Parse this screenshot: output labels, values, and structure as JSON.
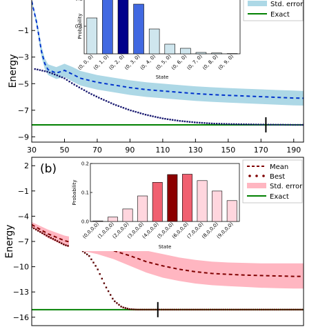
{
  "chart_data": [
    {
      "type": "line",
      "panel_label": "",
      "xlabel": "",
      "ylabel": "Energy",
      "xlim": [
        30,
        196
      ],
      "ylim": [
        -9.4,
        1.4
      ],
      "xticks": [
        30,
        50,
        70,
        90,
        110,
        130,
        150,
        170,
        190
      ],
      "yticks": [
        -9,
        -7,
        -5,
        -3,
        -1
      ],
      "grid": false,
      "legend": {
        "position": "top-right",
        "entries": [
          {
            "label": "Std. error",
            "kind": "band",
            "color": "#add8e6"
          },
          {
            "label": "Exact",
            "kind": "line",
            "color": "#008000"
          }
        ]
      },
      "colors": {
        "mean": "#0033cc",
        "best": "#191970",
        "band": "#add8e6",
        "exact": "#008000"
      },
      "mean": {
        "x": [
          30,
          33,
          36,
          38,
          40,
          45,
          50,
          55,
          60,
          70,
          80,
          90,
          100,
          110,
          120,
          130,
          140,
          150,
          160,
          170,
          180,
          190,
          196
        ],
        "y": [
          1.2,
          -0.4,
          -2.6,
          -3.5,
          -3.95,
          -4.2,
          -4.0,
          -4.3,
          -4.6,
          -4.9,
          -5.1,
          -5.3,
          -5.45,
          -5.55,
          -5.65,
          -5.75,
          -5.82,
          -5.88,
          -5.93,
          -5.98,
          -6.03,
          -6.08,
          -6.1
        ]
      },
      "band": {
        "x": [
          30,
          33,
          36,
          38,
          40,
          45,
          50,
          55,
          60,
          70,
          80,
          90,
          100,
          110,
          120,
          130,
          140,
          150,
          160,
          170,
          180,
          190,
          196
        ],
        "upper": [
          1.3,
          -0.1,
          -2.2,
          -3.1,
          -3.55,
          -3.75,
          -3.5,
          -3.75,
          -4.05,
          -4.35,
          -4.55,
          -4.75,
          -4.9,
          -5.0,
          -5.1,
          -5.2,
          -5.27,
          -5.33,
          -5.38,
          -5.43,
          -5.48,
          -5.52,
          -5.55
        ],
        "lower": [
          1.1,
          -0.7,
          -3.0,
          -3.9,
          -4.35,
          -4.65,
          -4.5,
          -4.85,
          -5.15,
          -5.45,
          -5.65,
          -5.85,
          -6.0,
          -6.1,
          -6.2,
          -6.3,
          -6.37,
          -6.43,
          -6.48,
          -6.53,
          -6.58,
          -6.63,
          -6.65
        ]
      },
      "best": {
        "x": [
          32,
          35,
          40,
          45,
          50,
          55,
          60,
          65,
          70,
          80,
          90,
          100,
          110,
          120,
          130,
          140,
          150,
          160,
          170,
          180,
          190,
          196
        ],
        "y": [
          -3.9,
          -3.98,
          -4.12,
          -4.35,
          -4.6,
          -5.0,
          -5.35,
          -5.7,
          -6.0,
          -6.55,
          -7.0,
          -7.35,
          -7.62,
          -7.8,
          -7.92,
          -8.0,
          -8.04,
          -8.06,
          -8.08,
          -8.09,
          -8.1,
          -8.1
        ]
      },
      "exact": {
        "y": -8.1
      },
      "marker": {
        "x": 173,
        "y": -8.1
      },
      "inset": {
        "ylabel": "Probability",
        "xlabel": "State",
        "ylim": [
          0,
          0.2
        ],
        "yticks": [
          "0.1",
          "0.2"
        ],
        "categories": [
          "(0, 0, 0)",
          "(0, 1, 0)",
          "(0, 2, 0)",
          "(0, 3, 0)",
          "(0, 4, 0)",
          "(0, 5, 0)",
          "(0, 6, 0)",
          "(0, 7, 0)",
          "(0, 8, 0)",
          "(0, 9, 0)"
        ],
        "values": [
          0.13,
          0.27,
          0.28,
          0.18,
          0.09,
          0.035,
          0.02,
          0.005,
          0.003,
          0.001
        ],
        "fills": [
          "#cfe6ee",
          "#4169e1",
          "#00008b",
          "#4169e1",
          "#cfe6ee",
          "#cfe6ee",
          "#cfe6ee",
          "#cfe6ee",
          "#cfe6ee",
          "#cfe6ee"
        ]
      }
    },
    {
      "type": "line",
      "panel_label": "(b)",
      "xlabel": "",
      "ylabel": "Energy",
      "xlim": [
        30,
        196
      ],
      "ylim": [
        -17,
        3
      ],
      "xticks": [],
      "yticks": [
        2,
        -1,
        -4,
        -7,
        -10,
        -13,
        -16
      ],
      "grid": false,
      "legend": {
        "position": "top-right",
        "entries": [
          {
            "label": "Mean",
            "kind": "dash",
            "color": "#800000"
          },
          {
            "label": "Best",
            "kind": "dots",
            "color": "#800000"
          },
          {
            "label": "Std. error",
            "kind": "band",
            "color": "#ffb6c1"
          },
          {
            "label": "Exact",
            "kind": "line",
            "color": "#008000"
          }
        ]
      },
      "colors": {
        "mean": "#800000",
        "best": "#5a0000",
        "band": "#ffb6c1",
        "exact": "#008000"
      },
      "mean": {
        "x": [
          30,
          40,
          50,
          60,
          70,
          80,
          90,
          100,
          110,
          120,
          130,
          140,
          150,
          160,
          170,
          180,
          190,
          196
        ],
        "y": [
          -5.0,
          -6.1,
          -6.9,
          -7.4,
          -7.7,
          -8.1,
          -8.7,
          -9.4,
          -9.9,
          -10.3,
          -10.6,
          -10.8,
          -10.9,
          -11.0,
          -11.05,
          -11.1,
          -11.15,
          -11.15
        ]
      },
      "band": {
        "x": [
          30,
          40,
          50,
          60,
          70,
          80,
          90,
          100,
          110,
          120,
          130,
          140,
          150,
          160,
          170,
          180,
          190,
          196
        ],
        "upper": [
          -4.7,
          -5.6,
          -6.3,
          -6.7,
          -6.9,
          -7.1,
          -7.5,
          -8.1,
          -8.5,
          -8.9,
          -9.2,
          -9.4,
          -9.5,
          -9.55,
          -9.6,
          -9.6,
          -9.6,
          -9.6
        ],
        "lower": [
          -5.3,
          -6.6,
          -7.5,
          -8.1,
          -8.5,
          -9.1,
          -9.9,
          -10.7,
          -11.3,
          -11.7,
          -12.0,
          -12.2,
          -12.3,
          -12.4,
          -12.5,
          -12.55,
          -12.6,
          -12.6
        ]
      },
      "best": {
        "x": [
          30,
          40,
          50,
          60,
          65,
          70,
          75,
          80,
          85,
          90,
          95,
          100,
          110,
          120,
          130,
          140,
          150,
          160,
          170,
          180,
          190,
          196
        ],
        "y": [
          -5.3,
          -6.4,
          -7.4,
          -8.0,
          -8.7,
          -10.2,
          -12.3,
          -14.0,
          -14.8,
          -15.05,
          -15.1,
          -15.1,
          -15.1,
          -15.1,
          -15.1,
          -15.1,
          -15.1,
          -15.1,
          -15.1,
          -15.1,
          -15.1,
          -15.1
        ]
      },
      "exact": {
        "y": -15.1
      },
      "marker": {
        "x": 107,
        "y": -15.1
      },
      "inset": {
        "ylabel": "Probability",
        "xlabel": "State",
        "ylim": [
          0,
          0.2
        ],
        "yticks": [
          "0.0",
          "0.1",
          "0.2"
        ],
        "categories": [
          "(0,0,0,0)",
          "(1,0,0,0)",
          "(2,0,0,0)",
          "(3,0,0,0)",
          "(4,0,0,0)",
          "(5,0,0,0)",
          "(6,0,0,0)",
          "(7,0,0,0)",
          "(8,0,0,0)",
          "(9,0,0,0)"
        ],
        "values": [
          0.002,
          0.015,
          0.043,
          0.088,
          0.135,
          0.162,
          0.163,
          0.141,
          0.105,
          0.072
        ],
        "fills": [
          "#ffd6de",
          "#ffd6de",
          "#ffd6de",
          "#ffd6de",
          "#f06070",
          "#8b0000",
          "#f06070",
          "#ffd6de",
          "#ffd6de",
          "#ffd6de"
        ]
      }
    }
  ]
}
